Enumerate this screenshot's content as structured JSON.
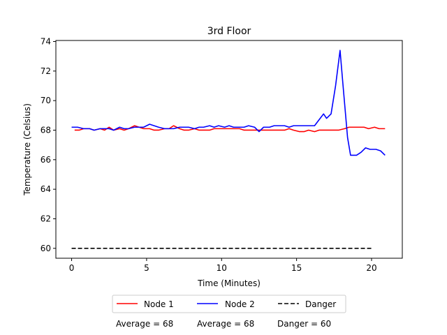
{
  "chart_data": {
    "type": "line",
    "title": "3rd Floor",
    "xlabel": "Time (Minutes)",
    "ylabel": "Temperature (Celsius)",
    "xlim": [
      -1.05,
      22.05
    ],
    "ylim": [
      59.33,
      74.07
    ],
    "xticks": [
      0,
      5,
      10,
      15,
      20
    ],
    "yticks": [
      60,
      62,
      64,
      66,
      68,
      70,
      72,
      74
    ],
    "grid": false,
    "legend_position": "bottom-center",
    "series": [
      {
        "name": "Node 1",
        "color": "#ff0000",
        "dash": "solid",
        "x": [
          0.2,
          0.5,
          0.8,
          1.2,
          1.5,
          1.9,
          2.2,
          2.5,
          2.8,
          3.2,
          3.5,
          3.8,
          4.2,
          4.5,
          4.8,
          5.2,
          5.5,
          5.8,
          6.2,
          6.5,
          6.8,
          7.2,
          7.5,
          7.8,
          8.2,
          8.5,
          8.8,
          9.2,
          9.5,
          9.8,
          10.2,
          10.5,
          10.8,
          11.2,
          11.5,
          11.8,
          12.2,
          12.5,
          12.8,
          13.2,
          13.5,
          13.8,
          14.2,
          14.5,
          14.8,
          15.2,
          15.5,
          15.8,
          16.2,
          16.5,
          16.8,
          17.2,
          17.5,
          17.8,
          18.2,
          18.5,
          18.8,
          19.2,
          19.5,
          19.8,
          20.2,
          20.5,
          20.9
        ],
        "y": [
          68.0,
          68.0,
          68.1,
          68.1,
          68.0,
          68.1,
          68.0,
          68.2,
          68.0,
          68.1,
          68.0,
          68.1,
          68.3,
          68.2,
          68.1,
          68.1,
          68.0,
          68.0,
          68.1,
          68.1,
          68.3,
          68.1,
          68.0,
          68.0,
          68.1,
          68.0,
          68.0,
          68.0,
          68.1,
          68.1,
          68.1,
          68.1,
          68.1,
          68.1,
          68.0,
          68.0,
          68.0,
          68.0,
          68.0,
          68.0,
          68.0,
          68.0,
          68.0,
          68.1,
          68.0,
          67.9,
          67.9,
          68.0,
          67.9,
          68.0,
          68.0,
          68.0,
          68.0,
          68.0,
          68.1,
          68.2,
          68.2,
          68.2,
          68.2,
          68.1,
          68.2,
          68.1,
          68.1
        ]
      },
      {
        "name": "Node 2",
        "color": "#0000ff",
        "dash": "solid",
        "x": [
          0.0,
          0.4,
          0.8,
          1.2,
          1.5,
          1.9,
          2.2,
          2.5,
          2.8,
          3.2,
          3.5,
          3.8,
          4.2,
          4.5,
          4.8,
          5.2,
          5.5,
          5.8,
          6.2,
          6.5,
          6.8,
          7.2,
          7.5,
          7.8,
          8.2,
          8.5,
          8.8,
          9.2,
          9.5,
          9.8,
          10.2,
          10.5,
          10.8,
          11.2,
          11.5,
          11.8,
          12.2,
          12.5,
          12.8,
          13.2,
          13.5,
          13.8,
          14.2,
          14.5,
          14.8,
          15.2,
          15.5,
          15.8,
          16.2,
          16.5,
          16.8,
          17.0,
          17.3,
          17.6,
          17.9,
          18.1,
          18.4,
          18.6,
          19.0,
          19.3,
          19.6,
          19.9,
          20.3,
          20.6,
          20.9
        ],
        "y": [
          68.2,
          68.2,
          68.1,
          68.1,
          68.0,
          68.1,
          68.1,
          68.1,
          68.0,
          68.2,
          68.1,
          68.1,
          68.2,
          68.2,
          68.2,
          68.4,
          68.3,
          68.2,
          68.1,
          68.1,
          68.1,
          68.2,
          68.2,
          68.2,
          68.1,
          68.2,
          68.2,
          68.3,
          68.2,
          68.3,
          68.2,
          68.3,
          68.2,
          68.2,
          68.2,
          68.3,
          68.2,
          67.9,
          68.2,
          68.2,
          68.3,
          68.3,
          68.3,
          68.2,
          68.3,
          68.3,
          68.3,
          68.3,
          68.3,
          68.7,
          69.1,
          68.8,
          69.1,
          71.0,
          73.4,
          71.0,
          67.5,
          66.3,
          66.3,
          66.5,
          66.8,
          66.7,
          66.7,
          66.6,
          66.3
        ]
      },
      {
        "name": "Danger",
        "color": "#000000",
        "dash": "dashed",
        "x": [
          0.0,
          20.0
        ],
        "y": [
          60.0,
          60.0
        ]
      }
    ],
    "footer": {
      "node1": "Average = 68",
      "node2": "Average = 68",
      "danger": "Danger = 60"
    }
  }
}
